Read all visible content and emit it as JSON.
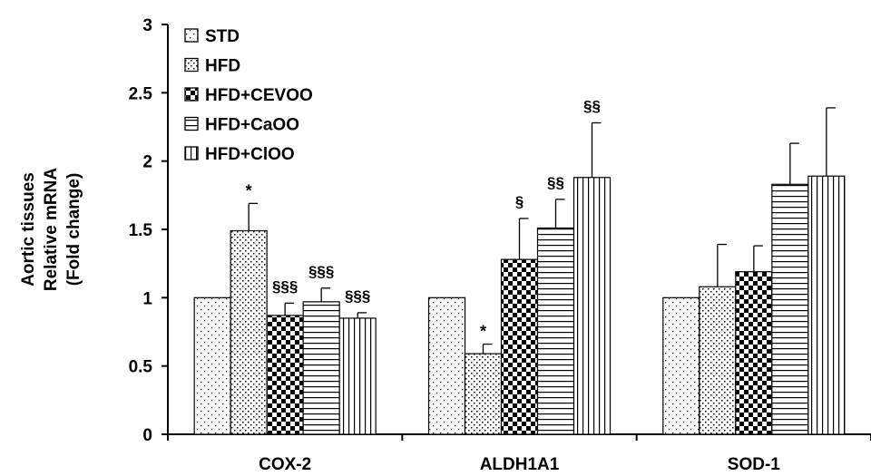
{
  "chart_data": {
    "type": "bar",
    "ylabel_lines": [
      "Aortic tissues",
      "Relative mRNA",
      "(Fold change)"
    ],
    "ylim": [
      0,
      3
    ],
    "yticks": [
      "0",
      "0.5",
      "1",
      "1.5",
      "2",
      "2.5",
      "3"
    ],
    "categories": [
      "COX-2",
      "ALDH1A1",
      "SOD-1"
    ],
    "legend_position": "top-left",
    "series": [
      {
        "name": "STD",
        "pattern": "dots-sparse",
        "values": [
          1.0,
          1.0,
          1.0
        ],
        "errors": [
          0,
          0,
          0
        ],
        "annotations": [
          "",
          "",
          ""
        ]
      },
      {
        "name": "HFD",
        "pattern": "dots-dense",
        "values": [
          1.49,
          0.59,
          1.08
        ],
        "errors": [
          0.2,
          0.07,
          0.31
        ],
        "annotations": [
          "*",
          "*",
          ""
        ]
      },
      {
        "name": "HFD+CEVOO",
        "pattern": "checker",
        "values": [
          0.87,
          1.28,
          1.19
        ],
        "errors": [
          0.09,
          0.3,
          0.19
        ],
        "annotations": [
          "§§§",
          "§",
          ""
        ]
      },
      {
        "name": "HFD+CaOO",
        "pattern": "hlines",
        "values": [
          0.97,
          1.51,
          1.83
        ],
        "errors": [
          0.1,
          0.21,
          0.3
        ],
        "annotations": [
          "§§§",
          "§§",
          ""
        ]
      },
      {
        "name": "HFD+ClOO",
        "pattern": "vlines",
        "values": [
          0.85,
          1.88,
          1.89
        ],
        "errors": [
          0.04,
          0.4,
          0.5
        ],
        "annotations": [
          "§§§",
          "§§",
          ""
        ]
      }
    ]
  }
}
